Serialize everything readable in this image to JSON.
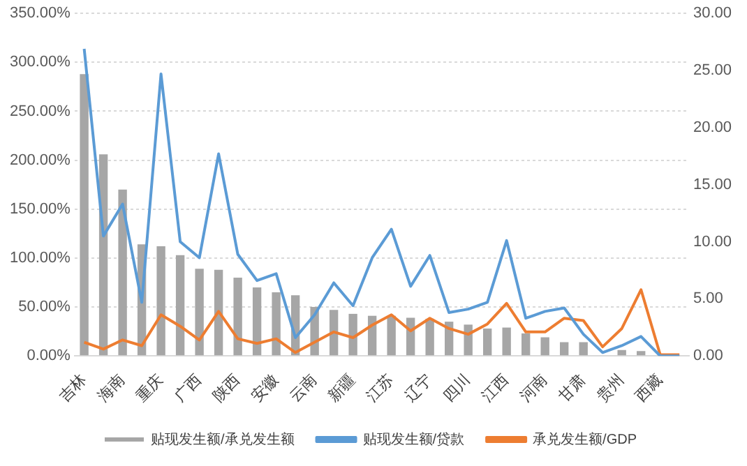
{
  "chart_data": {
    "type": "bar",
    "categories": [
      "吉林",
      null,
      "海南",
      null,
      "重庆",
      null,
      "广西",
      null,
      "陕西",
      null,
      "安徽",
      null,
      "云南",
      null,
      "新疆",
      null,
      "江苏",
      null,
      "辽宁",
      null,
      "四川",
      null,
      "江西",
      null,
      "河南",
      null,
      "甘肃",
      null,
      "贵州",
      null,
      "西藏",
      null
    ],
    "series": [
      {
        "name": "贴现发生额/承兑发生额",
        "color": "#a6a6a6",
        "values": [
          288,
          206,
          170,
          114,
          112,
          103,
          89,
          88,
          80,
          70,
          65,
          62,
          50,
          47,
          43,
          41,
          41,
          39,
          38,
          35,
          32,
          28,
          29,
          23,
          19,
          14,
          14,
          null,
          6,
          5,
          0,
          0
        ]
      },
      {
        "name": "贴现发生额/贷款",
        "type": "line",
        "axis": "y2",
        "color": "#5b9bd5",
        "values": [
          26.9,
          10.5,
          13.3,
          4.7,
          24.7,
          10.0,
          8.6,
          17.7,
          8.9,
          6.6,
          7.2,
          1.6,
          3.6,
          6.4,
          4.4,
          8.6,
          11.1,
          6.1,
          8.8,
          3.8,
          4.1,
          4.7,
          10.1,
          3.3,
          3.9,
          4.2,
          1.9,
          0.3,
          0.9,
          1.7,
          0,
          0
        ]
      },
      {
        "name": "承兑发生额/GDP",
        "type": "line",
        "axis": "y2",
        "color": "#ed7d31",
        "values": [
          1.2,
          0.6,
          1.4,
          0.9,
          3.6,
          2.6,
          1.4,
          3.9,
          1.5,
          1.1,
          1.5,
          0.3,
          1.2,
          2.1,
          1.6,
          2.7,
          3.6,
          2.2,
          3.3,
          2.4,
          1.9,
          2.8,
          4.6,
          2.1,
          2.1,
          3.3,
          3.1,
          0.8,
          2.4,
          5.8,
          0.1,
          0.1
        ]
      }
    ],
    "ylim": [
      0,
      350
    ],
    "yticks": [
      {
        "value": 0,
        "label": "0.00%"
      },
      {
        "value": 50,
        "label": "50.00%"
      },
      {
        "value": 100,
        "label": "100.00%"
      },
      {
        "value": 150,
        "label": "150.00%"
      },
      {
        "value": 200,
        "label": "200.00%"
      },
      {
        "value": 250,
        "label": "250.00%"
      },
      {
        "value": 300,
        "label": "300.00%"
      },
      {
        "value": 350,
        "label": "350.00%"
      }
    ],
    "y2lim": [
      0,
      30
    ],
    "y2ticks": [
      {
        "value": 0,
        "label": "0.00"
      },
      {
        "value": 5,
        "label": "5.00"
      },
      {
        "value": 10,
        "label": "10.00"
      },
      {
        "value": 15,
        "label": "15.00"
      },
      {
        "value": 20,
        "label": "20.00"
      },
      {
        "value": 25,
        "label": "25.00"
      },
      {
        "value": 30,
        "label": "30.00"
      }
    ],
    "grid": "y",
    "legend": "bottom",
    "marker": "none",
    "line_style": "solid"
  }
}
